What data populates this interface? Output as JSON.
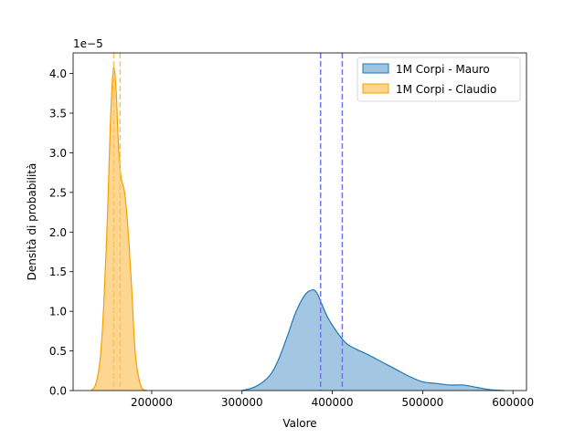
{
  "chart_data": {
    "type": "area",
    "title": "",
    "xlabel": "Valore",
    "ylabel": "Densità di probabilità",
    "y_offset_label": "1e−5",
    "xlim": [
      113000,
      615000
    ],
    "ylim": [
      0,
      4.26
    ],
    "xticks": [
      200000,
      300000,
      400000,
      500000,
      600000
    ],
    "xtick_labels": [
      "200000",
      "300000",
      "400000",
      "500000",
      "600000"
    ],
    "yticks": [
      0,
      0.5,
      1.0,
      1.5,
      2.0,
      2.5,
      3.0,
      3.5,
      4.0
    ],
    "ytick_labels": [
      "0.0",
      "0.5",
      "1.0",
      "1.5",
      "2.0",
      "2.5",
      "3.0",
      "3.5",
      "4.0"
    ],
    "grid": false,
    "legend_position": "top-right",
    "series": [
      {
        "name": "1M Corpi - Mauro",
        "color": "#1f77b4",
        "fill_color": "#9ec4e0",
        "vlines": [
          387000,
          411000
        ],
        "vline_color": "#6f77f0",
        "x": [
          300000,
          315000,
          330000,
          340000,
          350000,
          360000,
          370000,
          378000,
          383000,
          388000,
          395000,
          405000,
          415000,
          425000,
          440000,
          455000,
          470000,
          485000,
          500000,
          515000,
          530000,
          545000,
          560000,
          575000,
          590000
        ],
        "y": [
          0.0,
          0.05,
          0.18,
          0.38,
          0.68,
          1.0,
          1.21,
          1.27,
          1.23,
          1.1,
          0.92,
          0.74,
          0.6,
          0.53,
          0.45,
          0.36,
          0.27,
          0.18,
          0.11,
          0.09,
          0.07,
          0.07,
          0.04,
          0.01,
          0.0
        ]
      },
      {
        "name": "1M Corpi - Claudio",
        "color": "#f5a000",
        "fill_color": "#fdd58c",
        "vlines": [
          158000,
          165000
        ],
        "vline_color": "#fbc35f",
        "x": [
          133000,
          138000,
          143000,
          147000,
          151000,
          154000,
          157000,
          159000,
          161000,
          163000,
          166000,
          170000,
          174000,
          178000,
          182000,
          188000,
          195000
        ],
        "y": [
          0.0,
          0.08,
          0.4,
          1.1,
          2.2,
          3.3,
          4.0,
          4.03,
          3.7,
          3.15,
          2.7,
          2.5,
          2.0,
          1.25,
          0.45,
          0.06,
          0.0
        ]
      }
    ]
  }
}
